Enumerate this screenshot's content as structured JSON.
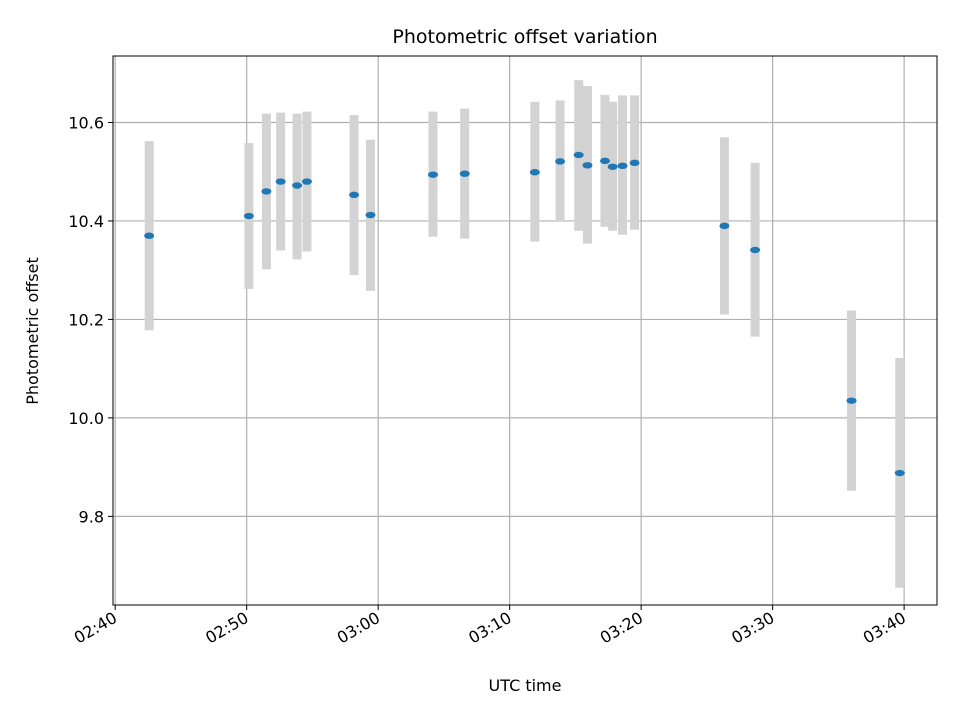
{
  "chart_data": {
    "type": "scatter",
    "title": "Photometric offset variation",
    "xlabel": "UTC time",
    "ylabel": "Photometric offset",
    "xlim": [
      "02:39:50",
      "03:42:30"
    ],
    "ylim": [
      9.62,
      10.735
    ],
    "grid": true,
    "x_ticks": [
      "02:40",
      "02:50",
      "03:00",
      "03:10",
      "03:20",
      "03:30",
      "03:40"
    ],
    "y_ticks": [
      "9.8",
      "10.0",
      "10.2",
      "10.4",
      "10.6"
    ],
    "point_color": "#1f77b4",
    "errorbar_color": "#d3d3d3",
    "points": [
      {
        "time": "02:42:35",
        "value": 10.37,
        "lower": 10.178,
        "upper": 10.562
      },
      {
        "time": "02:50:10",
        "value": 10.41,
        "lower": 10.262,
        "upper": 10.558
      },
      {
        "time": "02:51:30",
        "value": 10.46,
        "lower": 10.302,
        "upper": 10.618
      },
      {
        "time": "02:52:35",
        "value": 10.48,
        "lower": 10.34,
        "upper": 10.62
      },
      {
        "time": "02:53:50",
        "value": 10.472,
        "lower": 10.322,
        "upper": 10.618
      },
      {
        "time": "02:54:35",
        "value": 10.48,
        "lower": 10.338,
        "upper": 10.622
      },
      {
        "time": "02:58:10",
        "value": 10.453,
        "lower": 10.29,
        "upper": 10.615
      },
      {
        "time": "02:59:25",
        "value": 10.412,
        "lower": 10.258,
        "upper": 10.565
      },
      {
        "time": "03:04:10",
        "value": 10.494,
        "lower": 10.368,
        "upper": 10.622
      },
      {
        "time": "03:06:35",
        "value": 10.496,
        "lower": 10.364,
        "upper": 10.628
      },
      {
        "time": "03:11:55",
        "value": 10.499,
        "lower": 10.358,
        "upper": 10.642
      },
      {
        "time": "03:13:50",
        "value": 10.521,
        "lower": 10.4,
        "upper": 10.645
      },
      {
        "time": "03:15:15",
        "value": 10.534,
        "lower": 10.38,
        "upper": 10.686
      },
      {
        "time": "03:15:55",
        "value": 10.513,
        "lower": 10.354,
        "upper": 10.674
      },
      {
        "time": "03:17:15",
        "value": 10.522,
        "lower": 10.388,
        "upper": 10.656
      },
      {
        "time": "03:17:50",
        "value": 10.51,
        "lower": 10.38,
        "upper": 10.642
      },
      {
        "time": "03:18:35",
        "value": 10.512,
        "lower": 10.372,
        "upper": 10.655
      },
      {
        "time": "03:19:30",
        "value": 10.518,
        "lower": 10.382,
        "upper": 10.655
      },
      {
        "time": "03:26:20",
        "value": 10.39,
        "lower": 10.21,
        "upper": 10.57
      },
      {
        "time": "03:28:40",
        "value": 10.341,
        "lower": 10.165,
        "upper": 10.518
      },
      {
        "time": "03:36:00",
        "value": 10.035,
        "lower": 9.852,
        "upper": 10.218
      },
      {
        "time": "03:39:40",
        "value": 9.888,
        "lower": 9.655,
        "upper": 10.122
      }
    ]
  }
}
